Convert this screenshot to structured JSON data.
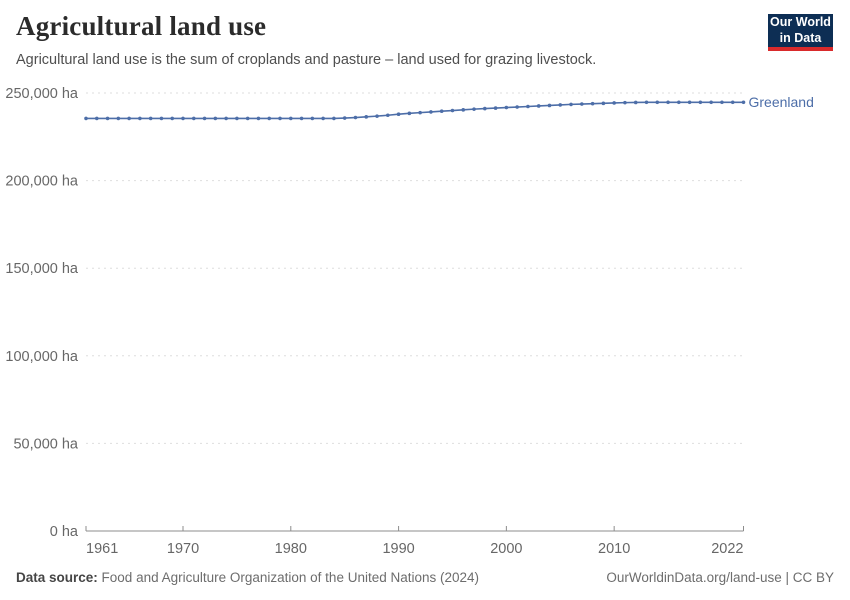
{
  "header": {
    "title": "Agricultural land use",
    "subtitle": "Agricultural land use is the sum of croplands and pasture – land used for grazing livestock.",
    "logo": {
      "line1": "Our World",
      "line2": "in Data",
      "bg_color": "#0d2e54",
      "accent_color": "#d92a2b"
    }
  },
  "chart_data": {
    "type": "line",
    "title": "Agricultural land use",
    "unit": "ha",
    "x": [
      1961,
      1962,
      1963,
      1964,
      1965,
      1966,
      1967,
      1968,
      1969,
      1970,
      1971,
      1972,
      1973,
      1974,
      1975,
      1976,
      1977,
      1978,
      1979,
      1980,
      1981,
      1982,
      1983,
      1984,
      1985,
      1986,
      1987,
      1988,
      1989,
      1990,
      1991,
      1992,
      1993,
      1994,
      1995,
      1996,
      1997,
      1998,
      1999,
      2000,
      2001,
      2002,
      2003,
      2004,
      2005,
      2006,
      2007,
      2008,
      2009,
      2010,
      2011,
      2012,
      2013,
      2014,
      2015,
      2016,
      2017,
      2018,
      2019,
      2020,
      2021,
      2022
    ],
    "series": [
      {
        "name": "Greenland",
        "color": "#4d6ea8",
        "values": [
          235500,
          235500,
          235500,
          235500,
          235500,
          235500,
          235500,
          235500,
          235500,
          235500,
          235500,
          235500,
          235500,
          235500,
          235500,
          235500,
          235500,
          235500,
          235500,
          235500,
          235500,
          235500,
          235500,
          235500,
          235700,
          236000,
          236400,
          236800,
          237300,
          237900,
          238400,
          238800,
          239200,
          239600,
          240000,
          240400,
          240800,
          241100,
          241400,
          241700,
          242000,
          242300,
          242600,
          242900,
          243200,
          243500,
          243700,
          243900,
          244100,
          244300,
          244500,
          244600,
          244700,
          244700,
          244700,
          244700,
          244700,
          244700,
          244700,
          244700,
          244700,
          244700
        ]
      }
    ],
    "ylim": [
      0,
      250000
    ],
    "yticks": [
      0,
      50000,
      100000,
      150000,
      200000,
      250000
    ],
    "ytick_labels": [
      "0 ha",
      "50,000 ha",
      "100,000 ha",
      "150,000 ha",
      "200,000 ha",
      "250,000 ha"
    ],
    "xticks": [
      1961,
      1970,
      1980,
      1990,
      2000,
      2010,
      2022
    ],
    "grid": "horizontal-dashed",
    "legend_position": "end-of-line",
    "colors": {
      "gridline": "#dedede",
      "axis": "#8c8c8c",
      "tick_label": "#676767"
    }
  },
  "footer": {
    "source_label": "Data source:",
    "source_text": "Food and Agriculture Organization of the United Nations (2024)",
    "link_text": "OurWorldinData.org/land-use | CC BY"
  }
}
